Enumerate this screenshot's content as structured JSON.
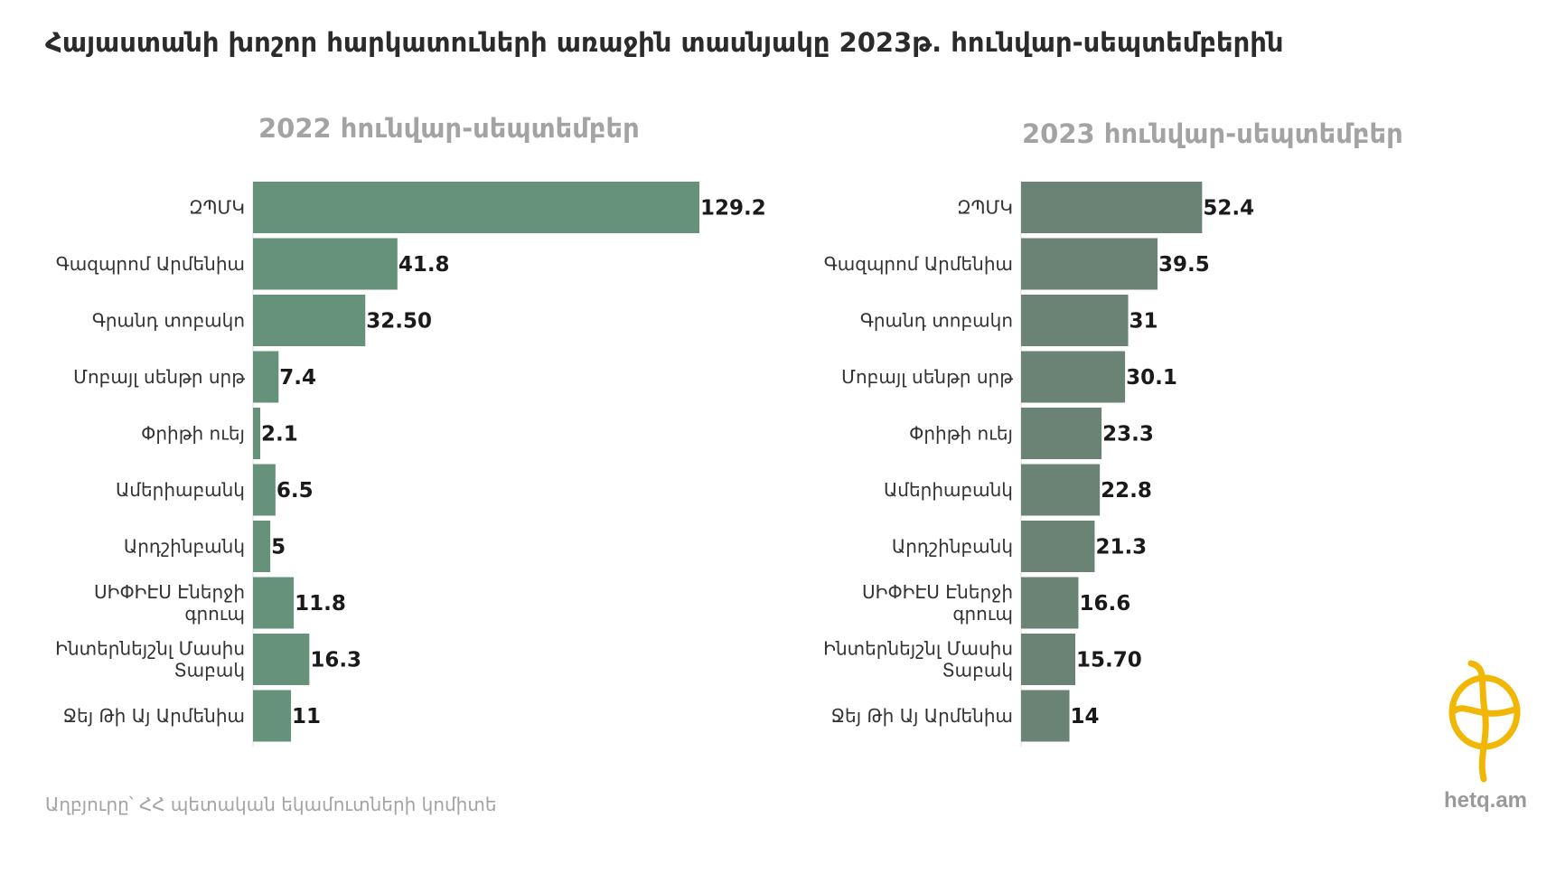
{
  "page": {
    "title": "Հայաստանի խոշոր հարկատուների առաջին տասնյակը 2023թ. հունվար-սեպտեմբերին",
    "source": "Աղբյուրը՝ ՀՀ պետական եկամուտների կոմիտե",
    "brand": "hetq.am",
    "logo_icon": "hetq-logo-icon"
  },
  "chart_data": [
    {
      "type": "bar",
      "orientation": "horizontal",
      "title": "2022 հունվար-սեպտեմբեր",
      "color": "#66917a",
      "categories": [
        "ԶՊՄԿ",
        "Գազպրոմ Արմենիա",
        "Գրանդ տոբակո",
        "Մոբայլ սենթր սրթ",
        "Փրիթի ուեյ",
        "Ամերիաբանկ",
        "Արդշինբանկ",
        "ՍԻՓԻԷՍ Էներջի գրուպ",
        "Ինտերնեյշնլ Մասիս Տաբակ",
        "Ջեյ Թի Այ Արմենիա"
      ],
      "values": [
        129.2,
        41.8,
        32.5,
        7.4,
        2.1,
        6.5,
        5,
        11.8,
        16.3,
        11
      ],
      "value_labels": [
        "129.2",
        "41.8",
        "32.50",
        "7.4",
        "2.1",
        "6.5",
        "5",
        "11.8",
        "16.3",
        "11"
      ],
      "xlim": [
        0,
        129.2
      ]
    },
    {
      "type": "bar",
      "orientation": "horizontal",
      "title": "2023 հունվար-սեպտեմբեր",
      "color": "#6a8374",
      "categories": [
        "ԶՊՄԿ",
        "Գազպրոմ Արմենիա",
        "Գրանդ տոբակո",
        "Մոբայլ սենթր սրթ",
        "Փրիթի ուեյ",
        "Ամերիաբանկ",
        "Արդշինբանկ",
        "ՍԻՓԻԷՍ Էներջի գրուպ",
        "Ինտերնեյշնլ Մասիս Տաբակ",
        "Ջեյ Թի Այ Արմենիա"
      ],
      "values": [
        52.4,
        39.5,
        31,
        30.1,
        23.3,
        22.8,
        21.3,
        16.6,
        15.7,
        14
      ],
      "value_labels": [
        "52.4",
        "39.5",
        "31",
        "30.1",
        "23.3",
        "22.8",
        "21.3",
        "16.6",
        "15.70",
        "14"
      ],
      "xlim": [
        0,
        129.2
      ]
    }
  ]
}
